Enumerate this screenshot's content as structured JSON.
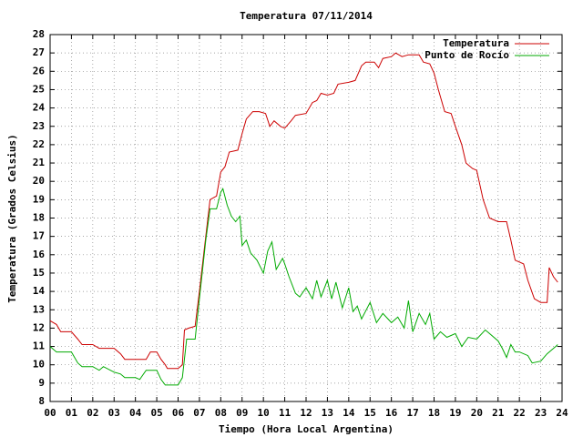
{
  "chart_data": {
    "type": "line",
    "title": "Temperatura 07/11/2014",
    "x_label": "Tiempo (Hora Local Argentina)",
    "y_label": "Temperatura (Grados Celsius)",
    "xlim": [
      0,
      24
    ],
    "ylim": [
      8,
      28
    ],
    "xticks": [
      {
        "value": 0,
        "label": "00"
      },
      {
        "value": 1,
        "label": "01"
      },
      {
        "value": 2,
        "label": "02"
      },
      {
        "value": 3,
        "label": "03"
      },
      {
        "value": 4,
        "label": "04"
      },
      {
        "value": 5,
        "label": "05"
      },
      {
        "value": 6,
        "label": "06"
      },
      {
        "value": 7,
        "label": "07"
      },
      {
        "value": 8,
        "label": "08"
      },
      {
        "value": 9,
        "label": "09"
      },
      10,
      11,
      12,
      13,
      14,
      15,
      16,
      17,
      18,
      19,
      20,
      21,
      22,
      23,
      24
    ],
    "yticks": [
      8,
      9,
      10,
      11,
      12,
      13,
      14,
      15,
      16,
      17,
      18,
      19,
      20,
      21,
      22,
      23,
      24,
      25,
      26,
      27,
      28
    ],
    "grid": true,
    "legend": "top-right",
    "series": [
      {
        "name": "Temperatura",
        "color": "#cc0000",
        "x": [
          0.0,
          0.3,
          0.5,
          1.0,
          1.3,
          1.5,
          2.0,
          2.3,
          3.0,
          3.3,
          3.5,
          4.0,
          4.5,
          4.7,
          5.0,
          5.2,
          5.4,
          5.5,
          6.0,
          6.2,
          6.3,
          6.5,
          6.8,
          7.0,
          7.3,
          7.5,
          7.8,
          8.0,
          8.2,
          8.4,
          8.8,
          9.0,
          9.2,
          9.5,
          9.8,
          10.1,
          10.3,
          10.5,
          10.8,
          11.0,
          11.3,
          11.5,
          12.0,
          12.3,
          12.5,
          12.7,
          13.0,
          13.3,
          13.5,
          14.0,
          14.3,
          14.6,
          14.8,
          15.2,
          15.4,
          15.6,
          16.0,
          16.2,
          16.5,
          16.8,
          17.0,
          17.3,
          17.5,
          17.8,
          18.0,
          18.2,
          18.5,
          18.8,
          19.0,
          19.3,
          19.5,
          19.8,
          20.0,
          20.3,
          20.6,
          21.0,
          21.4,
          21.6,
          21.8,
          22.2,
          22.4,
          22.7,
          23.0,
          23.3,
          23.4,
          23.6,
          23.8
        ],
        "values": [
          12.4,
          12.2,
          11.8,
          11.8,
          11.4,
          11.1,
          11.1,
          10.9,
          10.9,
          10.6,
          10.3,
          10.3,
          10.3,
          10.7,
          10.7,
          10.3,
          10.0,
          9.8,
          9.8,
          10.0,
          11.9,
          12.0,
          12.1,
          14.0,
          17.0,
          19.0,
          19.2,
          20.5,
          20.8,
          21.6,
          21.7,
          22.6,
          23.4,
          23.8,
          23.8,
          23.7,
          23.0,
          23.3,
          23.0,
          22.9,
          23.3,
          23.6,
          23.7,
          24.3,
          24.4,
          24.8,
          24.7,
          24.8,
          25.3,
          25.4,
          25.5,
          26.3,
          26.5,
          26.5,
          26.2,
          26.7,
          26.8,
          27.0,
          26.8,
          26.9,
          26.9,
          26.9,
          26.5,
          26.4,
          25.9,
          25.0,
          23.8,
          23.7,
          23.0,
          22.0,
          21.0,
          20.7,
          20.6,
          19.0,
          18.0,
          17.8,
          17.8,
          16.8,
          15.7,
          15.5,
          14.6,
          13.6,
          13.4,
          13.4,
          15.3,
          14.8,
          14.5
        ]
      },
      {
        "name": "Punto de Rocío",
        "color": "#00aa00",
        "x": [
          0.0,
          0.3,
          1.0,
          1.3,
          1.5,
          2.0,
          2.3,
          2.5,
          3.0,
          3.3,
          3.5,
          4.0,
          4.2,
          4.5,
          5.0,
          5.2,
          5.4,
          6.0,
          6.2,
          6.4,
          6.8,
          7.0,
          7.3,
          7.5,
          7.8,
          8.0,
          8.1,
          8.3,
          8.5,
          8.7,
          8.9,
          9.0,
          9.2,
          9.4,
          9.7,
          10.0,
          10.2,
          10.4,
          10.6,
          10.9,
          11.0,
          11.2,
          11.5,
          11.7,
          12.0,
          12.3,
          12.5,
          12.7,
          13.0,
          13.2,
          13.4,
          13.7,
          14.0,
          14.2,
          14.4,
          14.6,
          15.0,
          15.3,
          15.6,
          16.0,
          16.3,
          16.6,
          16.8,
          17.0,
          17.3,
          17.6,
          17.8,
          18.0,
          18.3,
          18.6,
          19.0,
          19.3,
          19.6,
          20.0,
          20.4,
          20.6,
          21.0,
          21.2,
          21.4,
          21.6,
          21.8,
          22.0,
          22.4,
          22.6,
          23.0,
          23.3,
          23.5,
          23.7,
          23.8
        ],
        "values": [
          11.0,
          10.7,
          10.7,
          10.1,
          9.9,
          9.9,
          9.7,
          9.9,
          9.6,
          9.5,
          9.3,
          9.3,
          9.2,
          9.7,
          9.7,
          9.2,
          8.9,
          8.9,
          9.3,
          11.4,
          11.4,
          13.6,
          16.8,
          18.5,
          18.5,
          19.4,
          19.6,
          18.7,
          18.1,
          17.8,
          18.1,
          16.5,
          16.8,
          16.1,
          15.7,
          15.0,
          16.2,
          16.7,
          15.2,
          15.8,
          15.5,
          14.8,
          13.9,
          13.7,
          14.2,
          13.6,
          14.6,
          13.7,
          14.6,
          13.6,
          14.5,
          13.1,
          14.2,
          12.9,
          13.2,
          12.5,
          13.4,
          12.3,
          12.8,
          12.3,
          12.6,
          12.0,
          13.5,
          11.8,
          12.8,
          12.2,
          12.8,
          11.4,
          11.8,
          11.5,
          11.7,
          11.0,
          11.5,
          11.4,
          11.9,
          11.7,
          11.3,
          10.9,
          10.4,
          11.1,
          10.7,
          10.7,
          10.5,
          10.1,
          10.2,
          10.6,
          10.8,
          11.0,
          11.1
        ]
      }
    ]
  }
}
